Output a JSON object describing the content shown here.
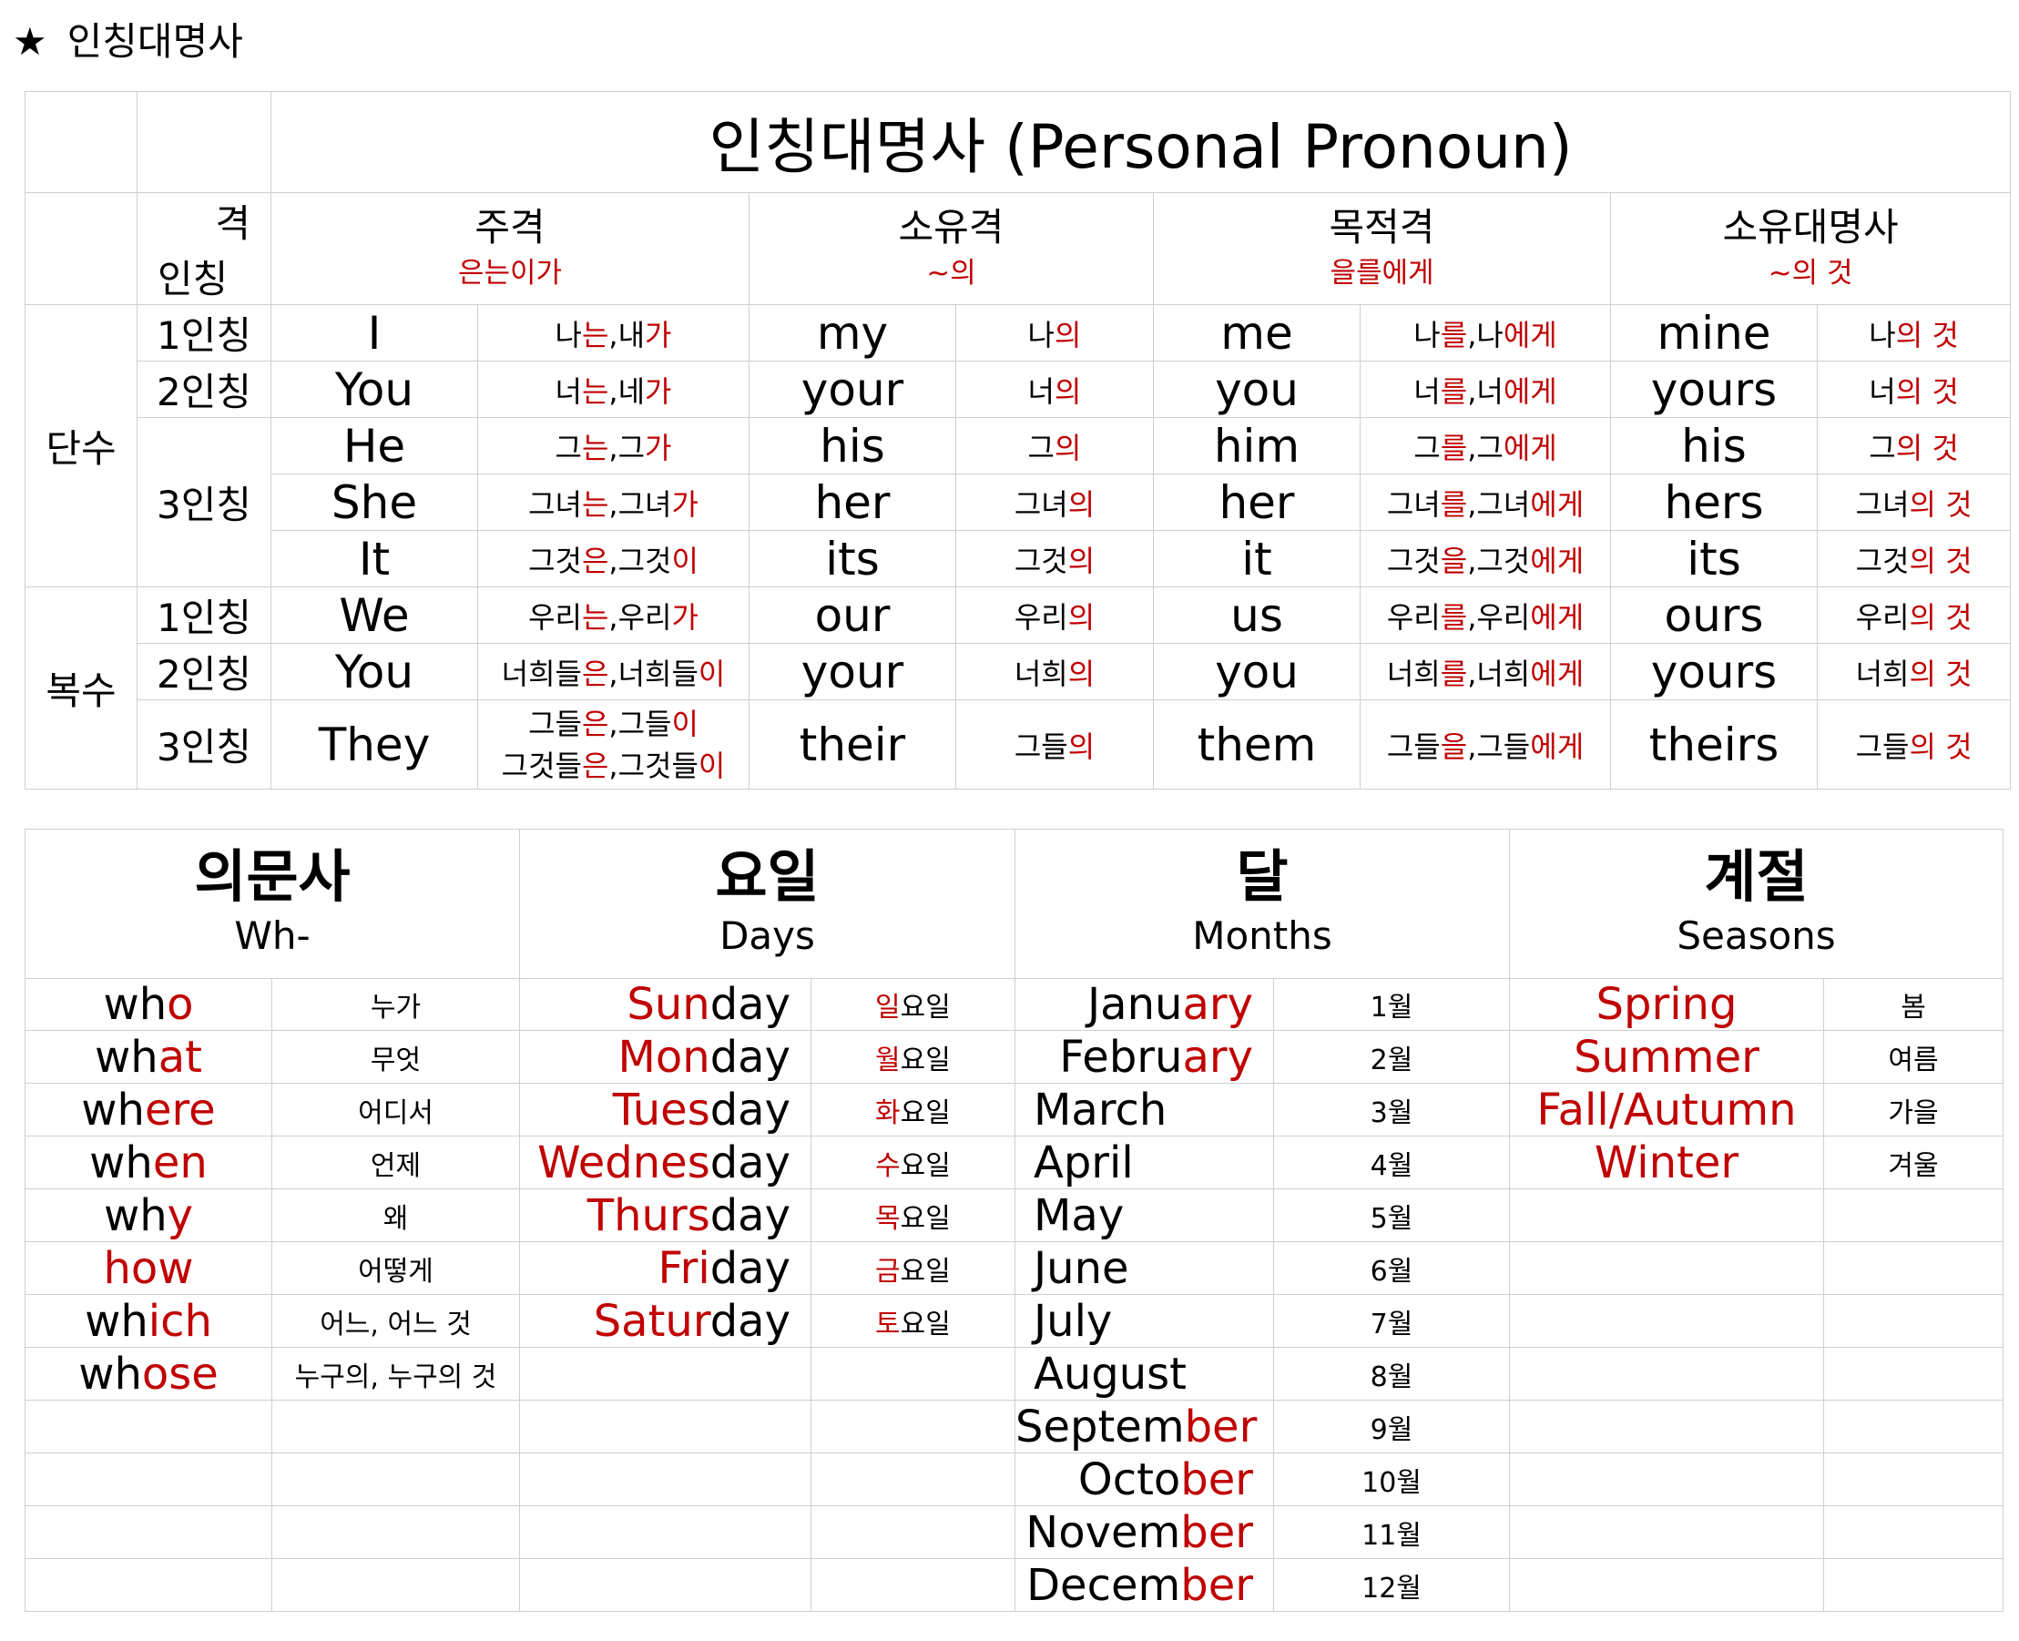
{
  "heading": {
    "star": "★",
    "text": "인칭대명사"
  },
  "pronouns": {
    "title": "인칭대명사 (Personal Pronoun)",
    "corner_case": "격",
    "corner_person": "인칭",
    "cases": [
      {
        "name": "주격",
        "sub": "은는이가"
      },
      {
        "name": "소유격",
        "sub": "~의"
      },
      {
        "name": "목적격",
        "sub": "을를에게"
      },
      {
        "name": "소유대명사",
        "sub": "~의 것"
      }
    ],
    "singular": "단수",
    "plural": "복수",
    "persons": {
      "p1": "1인칭",
      "p2": "2인칭",
      "p3": "3인칭"
    },
    "rows": [
      {
        "subj": "I",
        "subj_ko": [
          [
            "나",
            ""
          ],
          [
            "는",
            "r"
          ],
          [
            ",",
            ""
          ],
          [
            "내",
            ""
          ],
          [
            "가",
            "r"
          ]
        ],
        "poss": "my",
        "poss_ko": [
          [
            "나",
            ""
          ],
          [
            "의",
            "r"
          ]
        ],
        "obj": "me",
        "obj_ko": [
          [
            "나",
            ""
          ],
          [
            "를",
            "r"
          ],
          [
            ",",
            ""
          ],
          [
            "나",
            ""
          ],
          [
            "에게",
            "r"
          ]
        ],
        "pron": "mine",
        "pron_ko": [
          [
            "나",
            ""
          ],
          [
            "의 것",
            "r"
          ]
        ]
      },
      {
        "subj": "You",
        "subj_ko": [
          [
            "너",
            ""
          ],
          [
            "는",
            "r"
          ],
          [
            ",",
            ""
          ],
          [
            "네",
            ""
          ],
          [
            "가",
            "r"
          ]
        ],
        "poss": "your",
        "poss_ko": [
          [
            "너",
            ""
          ],
          [
            "의",
            "r"
          ]
        ],
        "obj": "you",
        "obj_ko": [
          [
            "너",
            ""
          ],
          [
            "를",
            "r"
          ],
          [
            ",",
            ""
          ],
          [
            "너",
            ""
          ],
          [
            "에게",
            "r"
          ]
        ],
        "pron": "yours",
        "pron_ko": [
          [
            "너",
            ""
          ],
          [
            "의 것",
            "r"
          ]
        ]
      },
      {
        "subj": "He",
        "subj_ko": [
          [
            "그",
            ""
          ],
          [
            "는",
            "r"
          ],
          [
            ",",
            ""
          ],
          [
            "그",
            ""
          ],
          [
            "가",
            "r"
          ]
        ],
        "poss": "his",
        "poss_ko": [
          [
            "그",
            ""
          ],
          [
            "의",
            "r"
          ]
        ],
        "obj": "him",
        "obj_ko": [
          [
            "그",
            ""
          ],
          [
            "를",
            "r"
          ],
          [
            ",",
            ""
          ],
          [
            "그",
            ""
          ],
          [
            "에게",
            "r"
          ]
        ],
        "pron": "his",
        "pron_ko": [
          [
            "그",
            ""
          ],
          [
            "의 것",
            "r"
          ]
        ]
      },
      {
        "subj": "She",
        "subj_ko": [
          [
            "그녀",
            ""
          ],
          [
            "는",
            "r"
          ],
          [
            ",",
            ""
          ],
          [
            "그녀",
            ""
          ],
          [
            "가",
            "r"
          ]
        ],
        "poss": "her",
        "poss_ko": [
          [
            "그녀",
            ""
          ],
          [
            "의",
            "r"
          ]
        ],
        "obj": "her",
        "obj_ko": [
          [
            "그녀",
            ""
          ],
          [
            "를",
            "r"
          ],
          [
            ",",
            ""
          ],
          [
            "그녀",
            ""
          ],
          [
            "에게",
            "r"
          ]
        ],
        "pron": "hers",
        "pron_ko": [
          [
            "그녀",
            ""
          ],
          [
            "의 것",
            "r"
          ]
        ]
      },
      {
        "subj": "It",
        "subj_ko": [
          [
            "그것",
            ""
          ],
          [
            "은",
            "r"
          ],
          [
            ",",
            ""
          ],
          [
            "그것",
            ""
          ],
          [
            "이",
            "r"
          ]
        ],
        "poss": "its",
        "poss_ko": [
          [
            "그것",
            ""
          ],
          [
            "의",
            "r"
          ]
        ],
        "obj": "it",
        "obj_ko": [
          [
            "그것",
            ""
          ],
          [
            "을",
            "r"
          ],
          [
            ",",
            ""
          ],
          [
            "그것",
            ""
          ],
          [
            "에게",
            "r"
          ]
        ],
        "pron": "its",
        "pron_ko": [
          [
            "그것",
            ""
          ],
          [
            "의 것",
            "r"
          ]
        ]
      },
      {
        "subj": "We",
        "subj_ko": [
          [
            "우리",
            ""
          ],
          [
            "는",
            "r"
          ],
          [
            ",",
            ""
          ],
          [
            "우리",
            ""
          ],
          [
            "가",
            "r"
          ]
        ],
        "poss": "our",
        "poss_ko": [
          [
            "우리",
            ""
          ],
          [
            "의",
            "r"
          ]
        ],
        "obj": "us",
        "obj_ko": [
          [
            "우리",
            ""
          ],
          [
            "를",
            "r"
          ],
          [
            ",",
            ""
          ],
          [
            "우리",
            ""
          ],
          [
            "에게",
            "r"
          ]
        ],
        "pron": "ours",
        "pron_ko": [
          [
            "우리",
            ""
          ],
          [
            "의 것",
            "r"
          ]
        ]
      },
      {
        "subj": "You",
        "subj_ko": [
          [
            "너희들",
            ""
          ],
          [
            "은",
            "r"
          ],
          [
            ",",
            ""
          ],
          [
            "너희들",
            ""
          ],
          [
            "이",
            "r"
          ]
        ],
        "poss": "your",
        "poss_ko": [
          [
            "너희",
            ""
          ],
          [
            "의",
            "r"
          ]
        ],
        "obj": "you",
        "obj_ko": [
          [
            "너희",
            ""
          ],
          [
            "를",
            "r"
          ],
          [
            ",",
            ""
          ],
          [
            "너희",
            ""
          ],
          [
            "에게",
            "r"
          ]
        ],
        "pron": "yours",
        "pron_ko": [
          [
            "너희",
            ""
          ],
          [
            "의 것",
            "r"
          ]
        ]
      },
      {
        "subj": "They",
        "subj_ko": [
          [
            "그들",
            ""
          ],
          [
            "은",
            "r"
          ],
          [
            ",",
            ""
          ],
          [
            "그들",
            ""
          ],
          [
            "이",
            "r"
          ],
          [
            "\n",
            ""
          ],
          [
            "그것들",
            ""
          ],
          [
            "은",
            "r"
          ],
          [
            ",",
            ""
          ],
          [
            "그것들",
            ""
          ],
          [
            "이",
            "r"
          ]
        ],
        "poss": "their",
        "poss_ko": [
          [
            "그들",
            ""
          ],
          [
            "의",
            "r"
          ]
        ],
        "obj": "them",
        "obj_ko": [
          [
            "그들",
            ""
          ],
          [
            "을",
            "r"
          ],
          [
            ",",
            ""
          ],
          [
            "그들",
            ""
          ],
          [
            "에게",
            "r"
          ]
        ],
        "pron": "theirs",
        "pron_ko": [
          [
            "그들",
            ""
          ],
          [
            "의 것",
            "r"
          ]
        ]
      }
    ]
  },
  "vocab": {
    "headers": [
      {
        "ko": "의문사",
        "en": "Wh-"
      },
      {
        "ko": "요일",
        "en": "Days"
      },
      {
        "ko": "달",
        "en": "Months"
      },
      {
        "ko": "계절",
        "en": "Seasons"
      }
    ],
    "wh": [
      {
        "en": [
          [
            "wh",
            ""
          ],
          [
            "o",
            "r"
          ]
        ],
        "ko": "누가"
      },
      {
        "en": [
          [
            "wh",
            ""
          ],
          [
            "at",
            "r"
          ]
        ],
        "ko": "무엇"
      },
      {
        "en": [
          [
            "wh",
            ""
          ],
          [
            "ere",
            "r"
          ]
        ],
        "ko": "어디서"
      },
      {
        "en": [
          [
            "wh",
            ""
          ],
          [
            "en",
            "r"
          ]
        ],
        "ko": "언제"
      },
      {
        "en": [
          [
            "wh",
            ""
          ],
          [
            "y",
            "r"
          ]
        ],
        "ko": "왜"
      },
      {
        "en": [
          [
            "how",
            "r"
          ]
        ],
        "ko": "어떻게"
      },
      {
        "en": [
          [
            "wh",
            ""
          ],
          [
            "ich",
            "r"
          ]
        ],
        "ko": "어느, 어느 것"
      },
      {
        "en": [
          [
            "wh",
            ""
          ],
          [
            "ose",
            "r"
          ]
        ],
        "ko": "누구의, 누구의 것"
      }
    ],
    "days": [
      {
        "en": [
          [
            "Sun",
            "r"
          ],
          [
            "day",
            ""
          ]
        ],
        "ko": [
          [
            "일",
            "r"
          ],
          [
            "요일",
            ""
          ]
        ]
      },
      {
        "en": [
          [
            "Mon",
            "r"
          ],
          [
            "day",
            ""
          ]
        ],
        "ko": [
          [
            "월",
            "r"
          ],
          [
            "요일",
            ""
          ]
        ]
      },
      {
        "en": [
          [
            "Tues",
            "r"
          ],
          [
            "day",
            ""
          ]
        ],
        "ko": [
          [
            "화",
            "r"
          ],
          [
            "요일",
            ""
          ]
        ]
      },
      {
        "en": [
          [
            "Wednes",
            "r"
          ],
          [
            "day",
            ""
          ]
        ],
        "ko": [
          [
            "수",
            "r"
          ],
          [
            "요일",
            ""
          ]
        ]
      },
      {
        "en": [
          [
            "Thurs",
            "r"
          ],
          [
            "day",
            ""
          ]
        ],
        "ko": [
          [
            "목",
            "r"
          ],
          [
            "요일",
            ""
          ]
        ]
      },
      {
        "en": [
          [
            "Fri",
            "r"
          ],
          [
            "day",
            ""
          ]
        ],
        "ko": [
          [
            "금",
            "r"
          ],
          [
            "요일",
            ""
          ]
        ]
      },
      {
        "en": [
          [
            "Satur",
            "r"
          ],
          [
            "day",
            ""
          ]
        ],
        "ko": [
          [
            "토",
            "r"
          ],
          [
            "요일",
            ""
          ]
        ]
      }
    ],
    "months": [
      {
        "en": [
          [
            "Janu",
            ""
          ],
          [
            "ary",
            "r"
          ]
        ],
        "ko": "1월",
        "align": "right"
      },
      {
        "en": [
          [
            "Febru",
            ""
          ],
          [
            "ary",
            "r"
          ]
        ],
        "ko": "2월",
        "align": "right"
      },
      {
        "en": [
          [
            "March",
            ""
          ]
        ],
        "ko": "3월",
        "align": "left"
      },
      {
        "en": [
          [
            "April",
            ""
          ]
        ],
        "ko": "4월",
        "align": "left"
      },
      {
        "en": [
          [
            "May",
            ""
          ]
        ],
        "ko": "5월",
        "align": "left"
      },
      {
        "en": [
          [
            "June",
            ""
          ]
        ],
        "ko": "6월",
        "align": "left"
      },
      {
        "en": [
          [
            "July",
            ""
          ]
        ],
        "ko": "7월",
        "align": "left"
      },
      {
        "en": [
          [
            "August",
            ""
          ]
        ],
        "ko": "8월",
        "align": "left"
      },
      {
        "en": [
          [
            "Septem",
            ""
          ],
          [
            "ber",
            "r"
          ]
        ],
        "ko": "9월",
        "align": "right"
      },
      {
        "en": [
          [
            "Octo",
            ""
          ],
          [
            "ber",
            "r"
          ]
        ],
        "ko": "10월",
        "align": "right"
      },
      {
        "en": [
          [
            "Novem",
            ""
          ],
          [
            "ber",
            "r"
          ]
        ],
        "ko": "11월",
        "align": "right"
      },
      {
        "en": [
          [
            "Decem",
            ""
          ],
          [
            "ber",
            "r"
          ]
        ],
        "ko": "12월",
        "align": "right"
      }
    ],
    "seasons": [
      {
        "en": "Spring",
        "ko": "봄"
      },
      {
        "en": "Summer",
        "ko": "여름"
      },
      {
        "en": "Fall/Autumn",
        "ko": "가을"
      },
      {
        "en": "Winter",
        "ko": "겨울"
      }
    ]
  },
  "colors": {
    "accent": "#c00000",
    "grid": "#cfcfcf"
  }
}
